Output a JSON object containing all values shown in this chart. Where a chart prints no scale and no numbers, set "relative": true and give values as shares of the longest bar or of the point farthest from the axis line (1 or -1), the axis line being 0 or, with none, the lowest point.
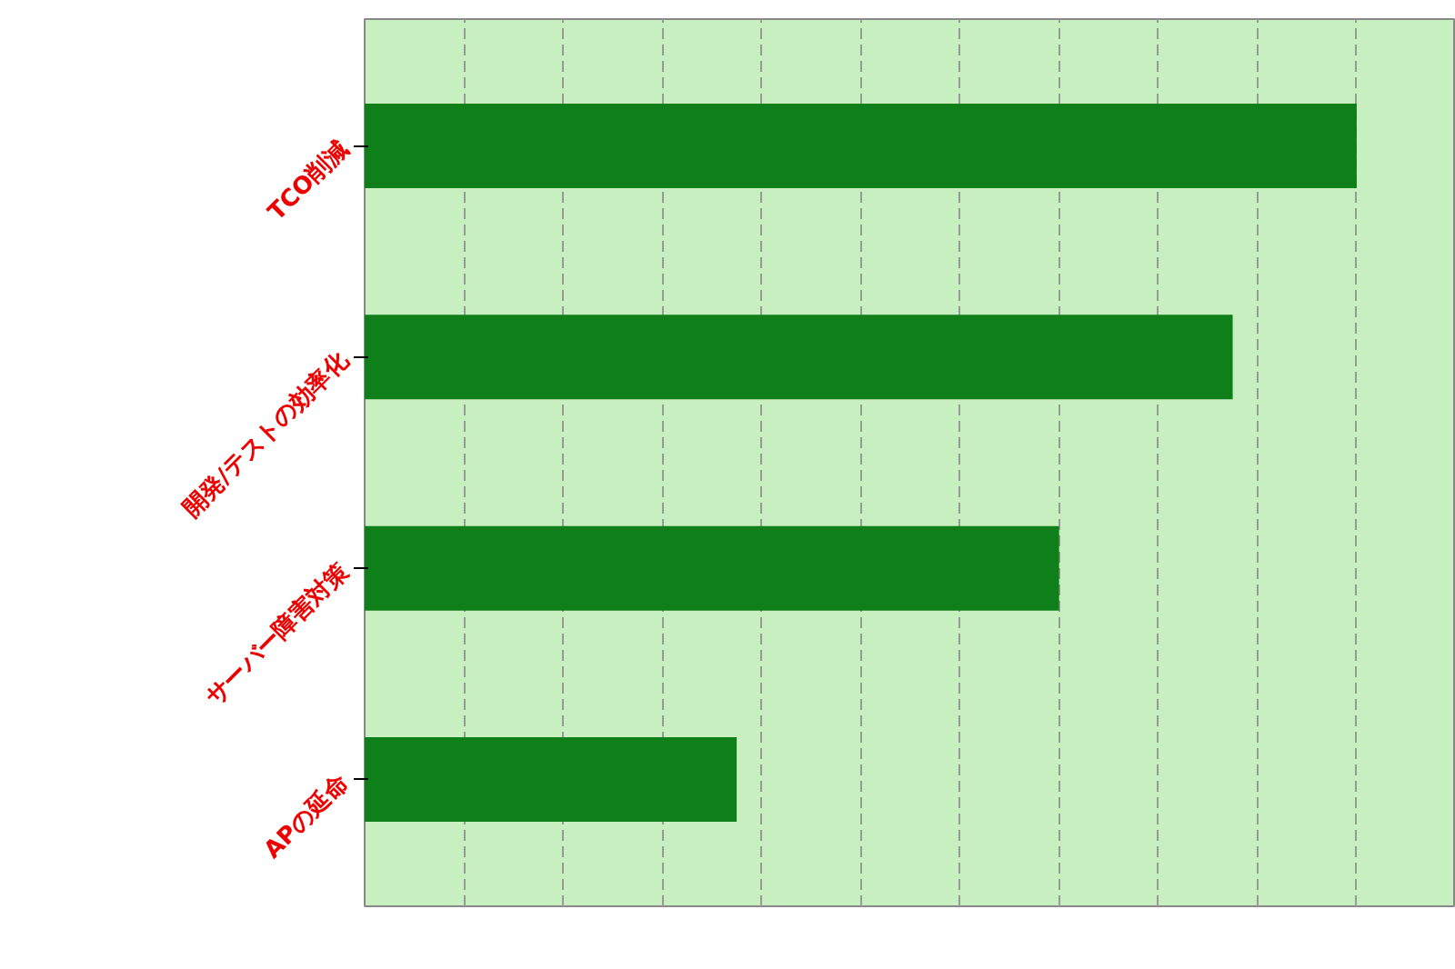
{
  "chart_data": {
    "type": "bar",
    "orientation": "horizontal",
    "relative": true,
    "categories": [
      "TCO削減",
      "開発/テストの効率化",
      "サーバー障害対策",
      "APの延命"
    ],
    "values": [
      1,
      0.875,
      0.7,
      0.375
    ],
    "color": "#0f7f1a",
    "grid": "x"
  }
}
